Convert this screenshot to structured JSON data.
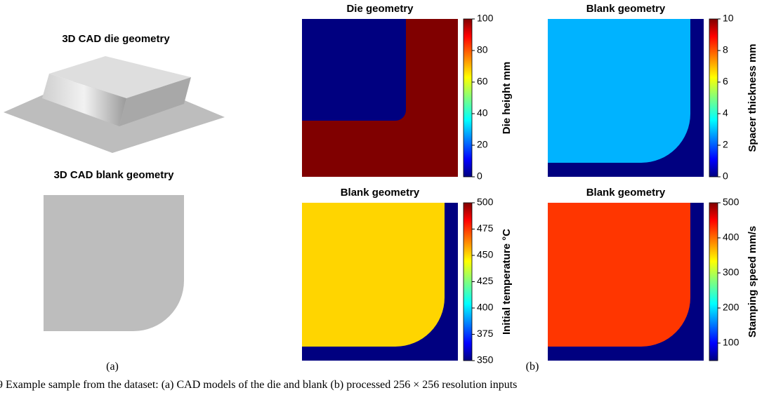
{
  "panel_a": {
    "die_title": "3D CAD die geometry",
    "blank_title": "3D CAD blank geometry",
    "label": "(a)"
  },
  "panel_b": {
    "label": "(b)",
    "maps": [
      {
        "title": "Die geometry",
        "colorbar_label": "Die height mm",
        "clim": [
          0,
          100
        ],
        "cticks": [
          0,
          20,
          40,
          60,
          80,
          100
        ],
        "region_value": 0,
        "background_value": 100
      },
      {
        "title": "Blank geometry",
        "colorbar_label": "Spacer thickness mm",
        "clim": [
          0,
          10
        ],
        "cticks": [
          0,
          2,
          4,
          6,
          8,
          10
        ],
        "region_value": 3,
        "background_value": 0
      },
      {
        "title": "Blank geometry",
        "colorbar_label": "Initial temperature °C",
        "clim": [
          350,
          500
        ],
        "cticks": [
          350,
          375,
          400,
          425,
          450,
          475,
          500
        ],
        "region_value": 450,
        "background_value": 350
      },
      {
        "title": "Blank geometry",
        "colorbar_label": "Stamping speed mm/s",
        "clim": [
          50,
          500
        ],
        "cticks": [
          100,
          200,
          300,
          400,
          500
        ],
        "region_value": 420,
        "background_value": 50
      }
    ]
  },
  "caption": "9 Example sample from the dataset: (a) CAD models of the die and blank (b) processed 256 × 256 resolution inputs"
}
